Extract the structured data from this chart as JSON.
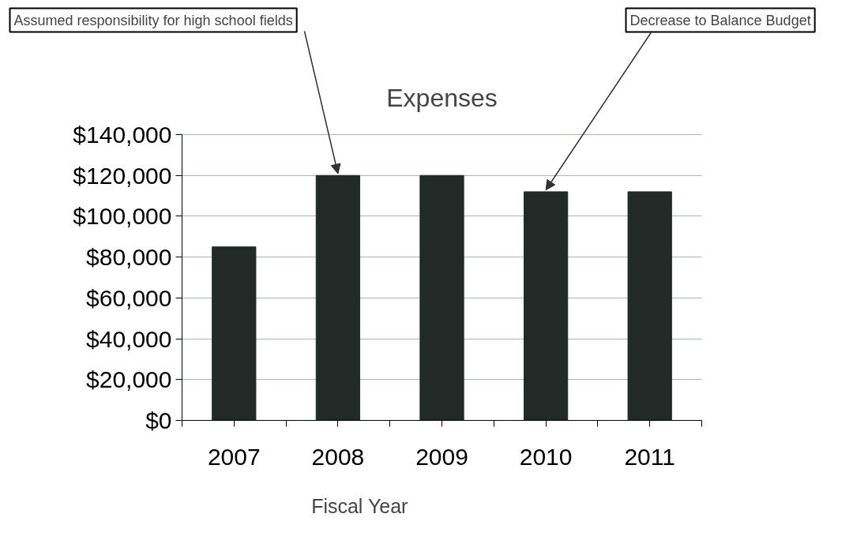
{
  "chart_data": {
    "type": "bar",
    "title": "Expenses",
    "xlabel": "Fiscal Year",
    "categories": [
      "2007",
      "2008",
      "2009",
      "2010",
      "2011"
    ],
    "values": [
      85000,
      120000,
      120000,
      112000,
      112000
    ],
    "color": "#222a28",
    "ylim": [
      0,
      140000
    ],
    "yticks": [
      {
        "value": 0,
        "label": "$0"
      },
      {
        "value": 20000,
        "label": "$20,000"
      },
      {
        "value": 40000,
        "label": "$40,000"
      },
      {
        "value": 60000,
        "label": "$60,000"
      },
      {
        "value": 80000,
        "label": "$80,000"
      },
      {
        "value": 100000,
        "label": "$100,000"
      },
      {
        "value": 120000,
        "label": "$120,000"
      },
      {
        "value": 140000,
        "label": "$140,000"
      }
    ],
    "grid": "y",
    "annotations": [
      {
        "text": "Assumed responsibility for high school fields",
        "x": "2008",
        "y": 120000
      },
      {
        "text": "Decrease to Balance Budget",
        "x": "2010",
        "y": 112000
      }
    ]
  }
}
